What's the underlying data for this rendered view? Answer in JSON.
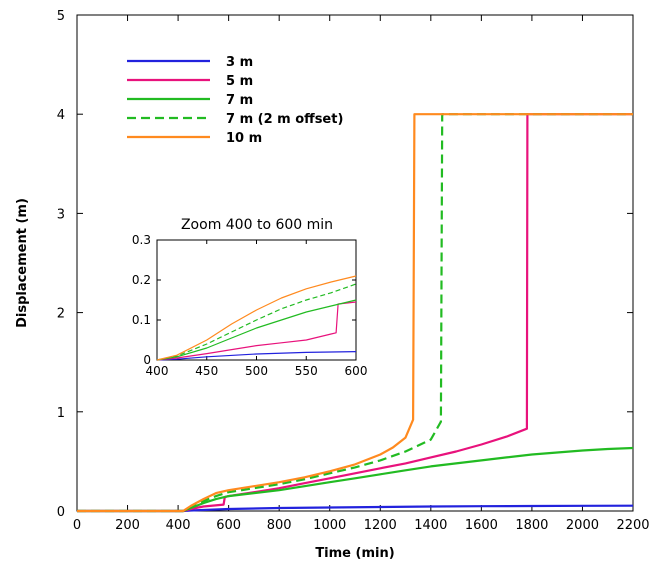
{
  "chart_data": {
    "type": "line",
    "title": "",
    "xlabel": "Time (min)",
    "ylabel": "Displacement (m)",
    "xlim": [
      0,
      2200
    ],
    "ylim": [
      0,
      5
    ],
    "xticks": [
      0,
      200,
      400,
      600,
      800,
      1000,
      1200,
      1400,
      1600,
      1800,
      2000,
      2200
    ],
    "yticks": [
      0,
      1,
      2,
      3,
      4,
      5
    ],
    "grid": false,
    "legend_position": "top-left",
    "series": [
      {
        "name": "3 m",
        "color": "#2222dd",
        "style": "solid",
        "x": [
          0,
          420,
          450,
          500,
          600,
          800,
          1000,
          1200,
          1400,
          1600,
          1800,
          2000,
          2200
        ],
        "y": [
          0,
          0,
          0.005,
          0.01,
          0.02,
          0.03,
          0.035,
          0.04,
          0.045,
          0.048,
          0.05,
          0.052,
          0.053
        ]
      },
      {
        "name": "5 m",
        "color": "#e8127c",
        "style": "solid",
        "x": [
          0,
          420,
          450,
          500,
          580,
          585,
          600,
          700,
          800,
          900,
          1000,
          1100,
          1200,
          1300,
          1400,
          1500,
          1600,
          1700,
          1780,
          1782,
          2200
        ],
        "y": [
          0,
          0,
          0.02,
          0.045,
          0.065,
          0.14,
          0.15,
          0.19,
          0.23,
          0.28,
          0.33,
          0.38,
          0.43,
          0.48,
          0.54,
          0.6,
          0.67,
          0.75,
          0.83,
          4.0,
          4.0
        ]
      },
      {
        "name": "7 m",
        "color": "#22bb22",
        "style": "solid",
        "x": [
          0,
          420,
          450,
          500,
          550,
          600,
          700,
          800,
          900,
          1000,
          1100,
          1200,
          1300,
          1400,
          1500,
          1600,
          1700,
          1800,
          1900,
          2000,
          2100,
          2200
        ],
        "y": [
          0,
          0,
          0.03,
          0.08,
          0.12,
          0.15,
          0.18,
          0.21,
          0.25,
          0.29,
          0.33,
          0.37,
          0.41,
          0.45,
          0.48,
          0.51,
          0.54,
          0.57,
          0.59,
          0.61,
          0.625,
          0.635
        ]
      },
      {
        "name": "7 m (2 m offset)",
        "color": "#22bb22",
        "style": "dashed",
        "x": [
          0,
          420,
          450,
          500,
          550,
          600,
          700,
          800,
          900,
          1000,
          1100,
          1200,
          1300,
          1400,
          1440,
          1445,
          2200
        ],
        "y": [
          0,
          0,
          0.04,
          0.1,
          0.15,
          0.19,
          0.23,
          0.27,
          0.32,
          0.38,
          0.44,
          0.51,
          0.6,
          0.72,
          0.9,
          4.0,
          4.0
        ]
      },
      {
        "name": "10 m",
        "color": "#ff8a1f",
        "style": "solid",
        "x": [
          0,
          420,
          450,
          500,
          550,
          600,
          700,
          800,
          900,
          1000,
          1100,
          1200,
          1250,
          1300,
          1330,
          1335,
          2200
        ],
        "y": [
          0,
          0,
          0.05,
          0.12,
          0.18,
          0.21,
          0.25,
          0.29,
          0.34,
          0.4,
          0.47,
          0.57,
          0.64,
          0.74,
          0.92,
          4.0,
          4.0
        ]
      }
    ],
    "inset": {
      "title": "Zoom 400 to 600 min",
      "xlim": [
        400,
        600
      ],
      "ylim": [
        0,
        0.3
      ],
      "xticks": [
        400,
        450,
        500,
        550,
        600
      ],
      "yticks": [
        0,
        0.1,
        0.2,
        0.3
      ],
      "ytick_labels": [
        "0",
        "0.1",
        "0.2",
        "0.3"
      ],
      "series": [
        {
          "name": "3 m",
          "color": "#2222dd",
          "style": "solid",
          "x": [
            400,
            420,
            450,
            500,
            550,
            600
          ],
          "y": [
            0,
            0.002,
            0.008,
            0.015,
            0.019,
            0.021
          ]
        },
        {
          "name": "5 m",
          "color": "#e8127c",
          "style": "solid",
          "x": [
            400,
            420,
            450,
            475,
            500,
            525,
            550,
            575,
            580,
            582,
            600
          ],
          "y": [
            0,
            0.005,
            0.016,
            0.026,
            0.036,
            0.043,
            0.05,
            0.065,
            0.068,
            0.14,
            0.145
          ]
        },
        {
          "name": "7 m",
          "color": "#22bb22",
          "style": "solid",
          "x": [
            400,
            420,
            450,
            475,
            500,
            525,
            550,
            575,
            600
          ],
          "y": [
            0,
            0.008,
            0.03,
            0.055,
            0.08,
            0.1,
            0.12,
            0.135,
            0.15
          ]
        },
        {
          "name": "7 m (2 m offset)",
          "color": "#22bb22",
          "style": "dashed",
          "x": [
            400,
            420,
            450,
            475,
            500,
            525,
            550,
            575,
            600
          ],
          "y": [
            0,
            0.01,
            0.04,
            0.07,
            0.1,
            0.128,
            0.15,
            0.168,
            0.19
          ]
        },
        {
          "name": "10 m",
          "color": "#ff8a1f",
          "style": "solid",
          "x": [
            400,
            420,
            450,
            475,
            500,
            525,
            550,
            575,
            600
          ],
          "y": [
            0,
            0.012,
            0.05,
            0.09,
            0.125,
            0.155,
            0.178,
            0.195,
            0.21
          ]
        }
      ]
    }
  }
}
